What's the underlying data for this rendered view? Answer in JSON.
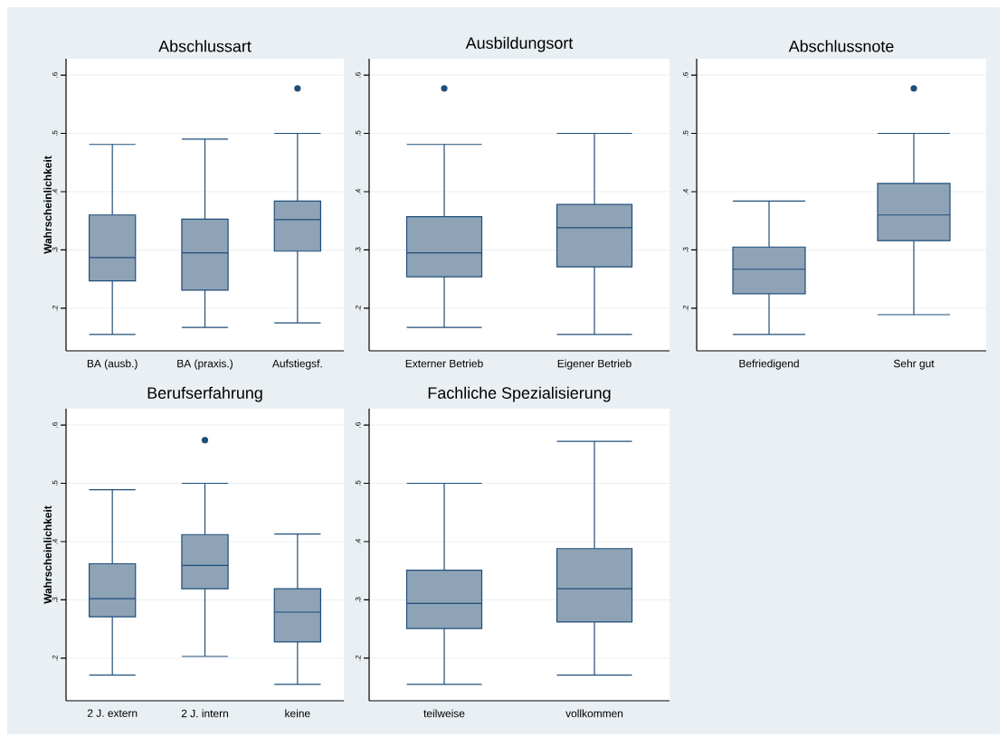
{
  "chart_data": [
    {
      "type": "box",
      "title": "Abschlussart",
      "ylabel": "Wahrscheinlichkeit",
      "categories": [
        "BA (ausb.)",
        "BA (praxis.)",
        "Aufstiegsf."
      ],
      "ylim": [
        0.127,
        0.628
      ],
      "yticks": [
        {
          "value": 0.2,
          "label": ".2"
        },
        {
          "value": 0.3,
          "label": ".3"
        },
        {
          "value": 0.4,
          "label": ".4"
        },
        {
          "value": 0.5,
          "label": ".5"
        },
        {
          "value": 0.6,
          "label": ".6"
        }
      ],
      "grid": "y",
      "series": [
        {
          "color": "#8fa3b7",
          "boxes": [
            {
              "low": 0.155,
              "q1": 0.247,
              "median": 0.287,
              "q3": 0.36,
              "high": 0.481
            },
            {
              "low": 0.167,
              "q1": 0.231,
              "median": 0.295,
              "q3": 0.353,
              "high": 0.49
            },
            {
              "low": 0.175,
              "q1": 0.298,
              "median": 0.352,
              "q3": 0.384,
              "high": 0.5,
              "outliers": [
                0.577
              ]
            }
          ]
        }
      ]
    },
    {
      "type": "box",
      "title": "Ausbildungsort",
      "categories": [
        "Externer Betrieb",
        "Eigener Betrieb"
      ],
      "ylim": [
        0.127,
        0.628
      ],
      "yticks": [
        {
          "value": 0.2,
          "label": ".2"
        },
        {
          "value": 0.3,
          "label": ".3"
        },
        {
          "value": 0.4,
          "label": ".4"
        },
        {
          "value": 0.5,
          "label": ".5"
        },
        {
          "value": 0.6,
          "label": ".6"
        }
      ],
      "grid": "y",
      "series": [
        {
          "color": "#8fa3b7",
          "boxes": [
            {
              "low": 0.167,
              "q1": 0.254,
              "median": 0.295,
              "q3": 0.357,
              "high": 0.481,
              "outliers": [
                0.577
              ]
            },
            {
              "low": 0.155,
              "q1": 0.271,
              "median": 0.338,
              "q3": 0.378,
              "high": 0.5
            }
          ]
        }
      ]
    },
    {
      "type": "box",
      "title": "Abschlussnote",
      "categories": [
        "Befriedigend",
        "Sehr gut"
      ],
      "ylim": [
        0.127,
        0.628
      ],
      "yticks": [
        {
          "value": 0.2,
          "label": ".2"
        },
        {
          "value": 0.3,
          "label": ".3"
        },
        {
          "value": 0.4,
          "label": ".4"
        },
        {
          "value": 0.5,
          "label": ".5"
        },
        {
          "value": 0.6,
          "label": ".6"
        }
      ],
      "grid": "y",
      "series": [
        {
          "color": "#8fa3b7",
          "boxes": [
            {
              "low": 0.155,
              "q1": 0.225,
              "median": 0.267,
              "q3": 0.305,
              "high": 0.384
            },
            {
              "low": 0.189,
              "q1": 0.316,
              "median": 0.36,
              "q3": 0.414,
              "high": 0.5,
              "outliers": [
                0.577
              ]
            }
          ]
        }
      ]
    },
    {
      "type": "box",
      "title": "Berufserfahrung",
      "ylabel": "Wahrscheinlichkeit",
      "categories": [
        "2 J. extern",
        "2 J. intern",
        "keine"
      ],
      "ylim": [
        0.127,
        0.628
      ],
      "yticks": [
        {
          "value": 0.2,
          "label": ".2"
        },
        {
          "value": 0.3,
          "label": ".3"
        },
        {
          "value": 0.4,
          "label": ".4"
        },
        {
          "value": 0.5,
          "label": ".5"
        },
        {
          "value": 0.6,
          "label": ".6"
        }
      ],
      "grid": "y",
      "series": [
        {
          "color": "#8fa3b7",
          "boxes": [
            {
              "low": 0.171,
              "q1": 0.271,
              "median": 0.302,
              "q3": 0.362,
              "high": 0.489
            },
            {
              "low": 0.203,
              "q1": 0.319,
              "median": 0.359,
              "q3": 0.412,
              "high": 0.5,
              "outliers": [
                0.574
              ]
            },
            {
              "low": 0.155,
              "q1": 0.228,
              "median": 0.279,
              "q3": 0.319,
              "high": 0.413
            }
          ]
        }
      ]
    },
    {
      "type": "box",
      "title": "Fachliche Spezialisierung",
      "categories": [
        "teilweise",
        "vollkommen"
      ],
      "ylim": [
        0.127,
        0.628
      ],
      "yticks": [
        {
          "value": 0.2,
          "label": ".2"
        },
        {
          "value": 0.3,
          "label": ".3"
        },
        {
          "value": 0.4,
          "label": ".4"
        },
        {
          "value": 0.5,
          "label": ".5"
        },
        {
          "value": 0.6,
          "label": ".6"
        }
      ],
      "grid": "y",
      "series": [
        {
          "color": "#8fa3b7",
          "boxes": [
            {
              "low": 0.155,
              "q1": 0.251,
              "median": 0.294,
              "q3": 0.351,
              "high": 0.5
            },
            {
              "low": 0.171,
              "q1": 0.262,
              "median": 0.319,
              "q3": 0.388,
              "high": 0.572
            }
          ]
        }
      ]
    }
  ]
}
